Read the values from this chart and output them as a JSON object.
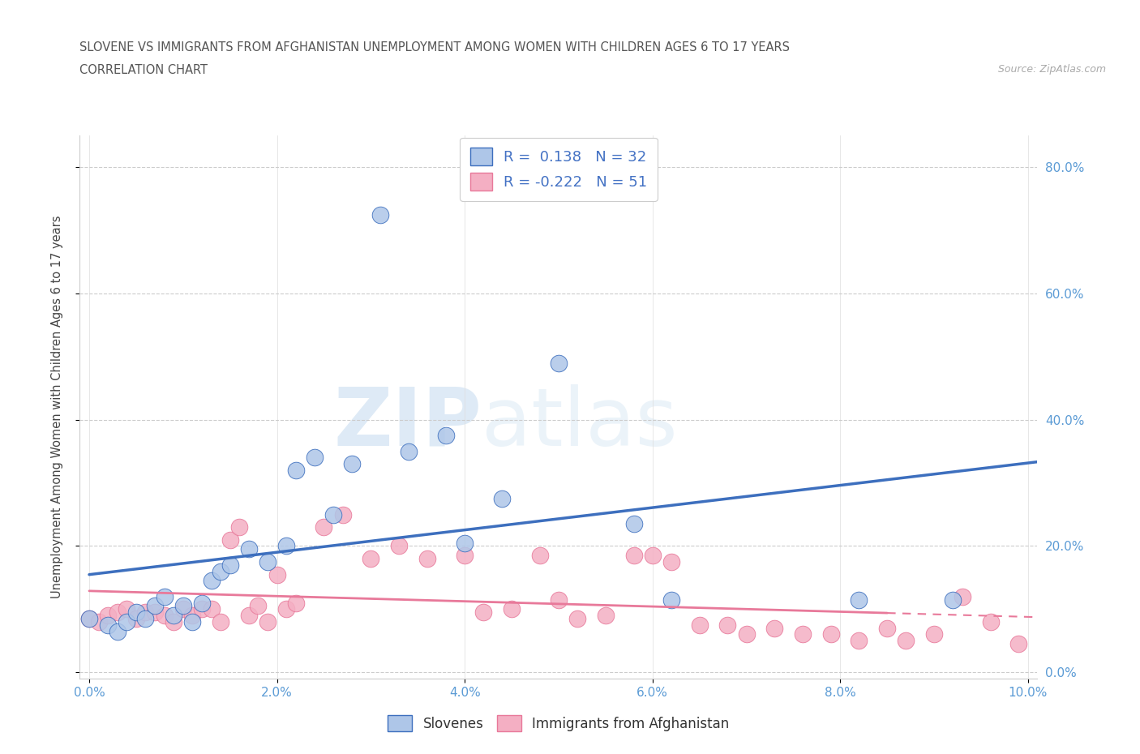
{
  "title_line1": "SLOVENE VS IMMIGRANTS FROM AFGHANISTAN UNEMPLOYMENT AMONG WOMEN WITH CHILDREN AGES 6 TO 17 YEARS",
  "title_line2": "CORRELATION CHART",
  "source_text": "Source: ZipAtlas.com",
  "ylabel_label": "Unemployment Among Women with Children Ages 6 to 17 years",
  "xlim": [
    -0.001,
    0.101
  ],
  "ylim": [
    -0.01,
    0.85
  ],
  "x_ticks": [
    0.0,
    0.02,
    0.04,
    0.06,
    0.08,
    0.1
  ],
  "x_tick_labels": [
    "0.0%",
    "2.0%",
    "4.0%",
    "6.0%",
    "8.0%",
    "10.0%"
  ],
  "y_ticks": [
    0.0,
    0.2,
    0.4,
    0.6,
    0.8
  ],
  "y_tick_labels": [
    "0.0%",
    "20.0%",
    "40.0%",
    "60.0%",
    "80.0%"
  ],
  "slovenes_color": "#aec6e8",
  "immigrants_color": "#f4afc3",
  "slovenes_line_color": "#3d6fbe",
  "immigrants_line_color": "#e8799a",
  "legend_label_1": "Slovenes",
  "legend_label_2": "Immigrants from Afghanistan",
  "r1": "0.138",
  "n1": "32",
  "r2": "-0.222",
  "n2": "51",
  "watermark_zip": "ZIP",
  "watermark_atlas": "atlas",
  "slovenes_x": [
    0.0,
    0.002,
    0.003,
    0.004,
    0.005,
    0.006,
    0.007,
    0.008,
    0.009,
    0.01,
    0.011,
    0.012,
    0.013,
    0.014,
    0.015,
    0.017,
    0.019,
    0.021,
    0.022,
    0.024,
    0.026,
    0.028,
    0.031,
    0.034,
    0.038,
    0.04,
    0.044,
    0.05,
    0.058,
    0.062,
    0.082,
    0.092
  ],
  "slovenes_y": [
    0.085,
    0.075,
    0.065,
    0.08,
    0.095,
    0.085,
    0.105,
    0.12,
    0.09,
    0.105,
    0.08,
    0.11,
    0.145,
    0.16,
    0.17,
    0.195,
    0.175,
    0.2,
    0.32,
    0.34,
    0.25,
    0.33,
    0.725,
    0.35,
    0.375,
    0.205,
    0.275,
    0.49,
    0.235,
    0.115,
    0.115,
    0.115
  ],
  "immigrants_x": [
    0.0,
    0.001,
    0.002,
    0.003,
    0.004,
    0.005,
    0.006,
    0.007,
    0.008,
    0.009,
    0.01,
    0.011,
    0.012,
    0.013,
    0.014,
    0.015,
    0.016,
    0.017,
    0.018,
    0.019,
    0.02,
    0.021,
    0.022,
    0.025,
    0.027,
    0.03,
    0.033,
    0.036,
    0.04,
    0.042,
    0.045,
    0.048,
    0.05,
    0.052,
    0.055,
    0.058,
    0.06,
    0.062,
    0.065,
    0.068,
    0.07,
    0.073,
    0.076,
    0.079,
    0.082,
    0.085,
    0.087,
    0.09,
    0.093,
    0.096,
    0.099
  ],
  "immigrants_y": [
    0.085,
    0.08,
    0.09,
    0.095,
    0.1,
    0.085,
    0.095,
    0.095,
    0.09,
    0.08,
    0.1,
    0.09,
    0.1,
    0.1,
    0.08,
    0.21,
    0.23,
    0.09,
    0.105,
    0.08,
    0.155,
    0.1,
    0.11,
    0.23,
    0.25,
    0.18,
    0.2,
    0.18,
    0.185,
    0.095,
    0.1,
    0.185,
    0.115,
    0.085,
    0.09,
    0.185,
    0.185,
    0.175,
    0.075,
    0.075,
    0.06,
    0.07,
    0.06,
    0.06,
    0.05,
    0.07,
    0.05,
    0.06,
    0.12,
    0.08,
    0.045
  ]
}
